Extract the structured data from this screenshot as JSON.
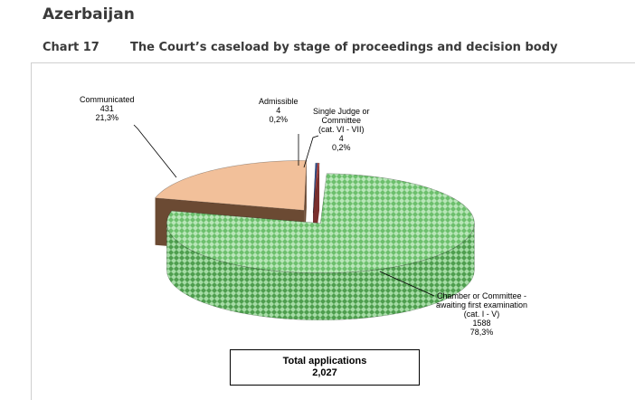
{
  "header": {
    "country": "Azerbaijan",
    "chart_number": "Chart 17",
    "chart_title": "The Court’s caseload by stage of proceedings and decision body"
  },
  "chart_data": {
    "type": "pie",
    "title": "The Court’s caseload by stage of proceedings and decision body",
    "slices": [
      {
        "label": [
          "Chamber or Committee -",
          "awaiting first examination",
          "(cat. I - V)"
        ],
        "value": 1588,
        "percent": "78,3%",
        "color": "#8fd08f",
        "side_color": "#5aa05a"
      },
      {
        "label": [
          "Communicated"
        ],
        "value": 431,
        "percent": "21,3%",
        "color": "#f2c09a",
        "side_color": "#6b4a33"
      },
      {
        "label": [
          "Admissible"
        ],
        "value": 4,
        "percent": "0,2%",
        "color": "#3a5a9c",
        "side_color": "#2a3f6e"
      },
      {
        "label": [
          "Single Judge or",
          "Committee",
          "(cat. VI - VII)"
        ],
        "value": 4,
        "percent": "0,2%",
        "color": "#c0504d",
        "side_color": "#7a2f2d"
      }
    ],
    "total_label": "Total applications",
    "total_value": "2,027"
  }
}
